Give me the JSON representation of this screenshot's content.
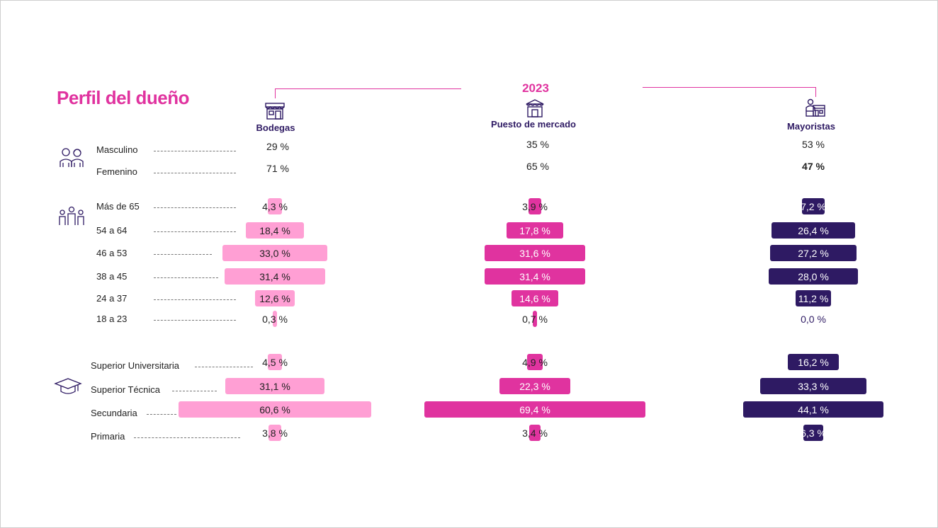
{
  "title": "Perfil del dueño",
  "year": "2023",
  "colors": {
    "bodegas": "#ff9fd4",
    "puesto": "#e0339f",
    "mayoristas": "#2e1a63",
    "title": "#e0339f"
  },
  "icons": {
    "bodegas": "store-icon",
    "puesto": "market-stall-icon",
    "mayoristas": "wholesaler-icon",
    "gender": "people-gender-icon",
    "age": "family-icon",
    "education": "graduation-cap-icon"
  },
  "chart_data": {
    "type": "bar",
    "series": [
      {
        "key": "bodegas",
        "name": "Bodegas"
      },
      {
        "key": "puesto",
        "name": "Puesto de mercado"
      },
      {
        "key": "mayoristas",
        "name": "Mayoristas"
      }
    ],
    "gender": {
      "categories": [
        "Masculino",
        "Femenino"
      ],
      "bodegas": [
        "29 %",
        "71 %"
      ],
      "puesto": [
        "35 %",
        "65 %"
      ],
      "mayoristas": [
        "53 %",
        "47 %"
      ]
    },
    "age": {
      "categories": [
        "Más de 65",
        "54 a 64",
        "46 a 53",
        "38 a 45",
        "24 a 37",
        "18 a 23"
      ],
      "bodegas": [
        4.3,
        18.4,
        33.0,
        31.4,
        12.6,
        0.3
      ],
      "puesto": [
        3.9,
        17.8,
        31.6,
        31.4,
        14.6,
        0.7
      ],
      "mayoristas": [
        7.2,
        26.4,
        27.2,
        28.0,
        11.2,
        0.0
      ],
      "labels": {
        "bodegas": [
          "4,3 %",
          "18,4 %",
          "33,0 %",
          "31,4 %",
          "12,6 %",
          "0,3  %"
        ],
        "puesto": [
          "3,9 %",
          "17,8 %",
          "31,6 %",
          "31,4 %",
          "14,6 %",
          "0,7  %"
        ],
        "mayoristas": [
          "7,2 %",
          "26,4 %",
          "27,2 %",
          "28,0 %",
          "11,2 %",
          "0,0  %"
        ]
      }
    },
    "education": {
      "categories": [
        "Superior Universitaria",
        "Superior Técnica",
        "Secundaria",
        "Primaria"
      ],
      "bodegas": [
        4.5,
        31.1,
        60.6,
        3.8
      ],
      "puesto": [
        4.9,
        22.3,
        69.4,
        3.4
      ],
      "mayoristas": [
        16.2,
        33.3,
        44.1,
        6.3
      ],
      "labels": {
        "bodegas": [
          "4,5 %",
          "31,1 %",
          "60,6 %",
          "3,8 %"
        ],
        "puesto": [
          "4,9 %",
          "22,3 %",
          "69,4 %",
          "3,4 %"
        ],
        "mayoristas": [
          "16,2 %",
          "33,3 %",
          "44,1 %",
          "6,3 %"
        ]
      }
    }
  }
}
